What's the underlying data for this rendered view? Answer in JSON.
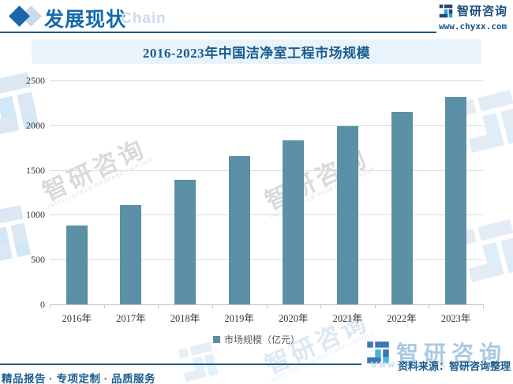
{
  "header": {
    "section_title": "发展现状",
    "section_subtitle": "Chain",
    "brand": "智研咨询",
    "url": "www.chyxx.com"
  },
  "chart_data": {
    "type": "bar",
    "title": "2016-2023年中国洁净室工程市场规模",
    "categories": [
      "2016年",
      "2017年",
      "2018年",
      "2019年",
      "2020年",
      "2021年",
      "2022年",
      "2023年"
    ],
    "series": [
      {
        "name": "市场规模（亿元）",
        "values": [
          880,
          1113,
          1395,
          1655,
          1832,
          1990,
          2148,
          2315
        ]
      }
    ],
    "ylabel": "",
    "xlabel": "",
    "unit": "亿元",
    "ylim": [
      0,
      2500
    ],
    "yticks": [
      0,
      500,
      1000,
      1500,
      2000,
      2500
    ],
    "grid": true,
    "legend_position": "bottom",
    "bar_color": "#5b90a6"
  },
  "legend": {
    "label": "市场规模（亿元）"
  },
  "footer": {
    "source": "资料来源：智研咨询整理",
    "tagline": "精品报告 · 专项定制 · 品质服务"
  },
  "watermark": {
    "brand": "智研咨询",
    "brand_en": "INTELLIGENCE RESEARCH GROUP",
    "url": "www.chyxx.com"
  },
  "colors": {
    "accent_blue": "#1a5c8f",
    "header_blue": "#1769a9",
    "bar": "#5b90a6",
    "logo_navy": "#24497a",
    "logo_cyan": "#2aa7df",
    "banner_bg": "#e9f3fb"
  }
}
